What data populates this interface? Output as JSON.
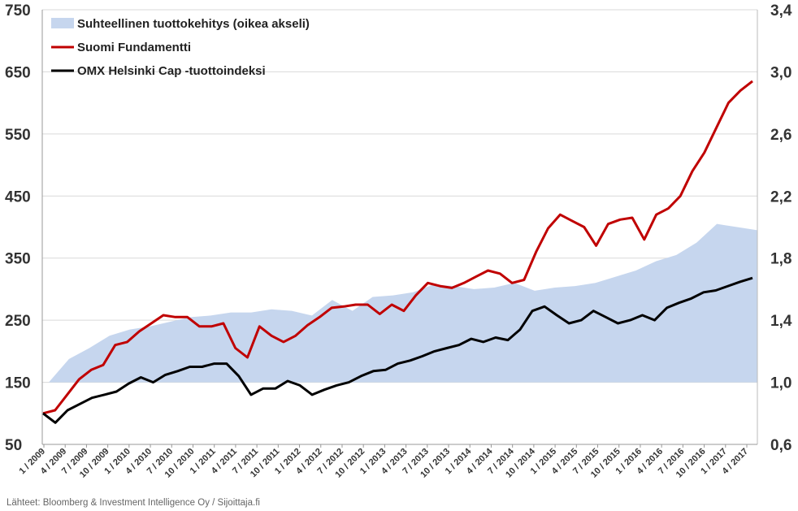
{
  "chart_data": {
    "type": "line",
    "title": "",
    "source": "Lähteet: Bloomberg & Investment Intelligence Oy / Sijoittaja.fi",
    "left_axis": {
      "ylim": [
        50,
        750
      ],
      "ticks": [
        50,
        150,
        250,
        350,
        450,
        550,
        650,
        750
      ]
    },
    "right_axis": {
      "ylim": [
        0.6,
        3.4
      ],
      "ticks": [
        "0,6",
        "1,0",
        "1,4",
        "1,8",
        "2,2",
        "2,6",
        "3,0",
        "3,4"
      ],
      "tick_values": [
        0.6,
        1.0,
        1.4,
        1.8,
        2.2,
        2.6,
        3.0,
        3.4
      ]
    },
    "x_labels": [
      "1 / 2009",
      "4 / 2009",
      "7 / 2009",
      "10 / 2009",
      "1 / 2010",
      "4 / 2010",
      "7 / 2010",
      "10 / 2010",
      "1 / 2011",
      "4 / 2011",
      "7 / 2011",
      "10 / 2011",
      "1 / 2012",
      "4 / 2012",
      "7 / 2012",
      "10 / 2012",
      "1 / 2013",
      "4 / 2013",
      "7 / 2013",
      "10 / 2013",
      "1 / 2014",
      "4 / 2014",
      "7 / 2014",
      "10 / 2014",
      "1 / 2015",
      "4 / 2015",
      "7 / 2015",
      "10 / 2015",
      "1 / 2016",
      "4 / 2016",
      "7 / 2016",
      "10 / 2016",
      "1 / 2017",
      "4 / 2017"
    ],
    "grid": true,
    "legend_position": "top-left",
    "series": [
      {
        "name": "Suhteellinen tuottokehitys (oikea akseli)",
        "kind": "area",
        "axis": "right",
        "color": "#c6d6ee",
        "values": [
          1.0,
          1.15,
          1.22,
          1.3,
          1.34,
          1.36,
          1.39,
          1.42,
          1.43,
          1.45,
          1.45,
          1.47,
          1.46,
          1.43,
          1.53,
          1.46,
          1.55,
          1.56,
          1.58,
          1.63,
          1.62,
          1.6,
          1.61,
          1.64,
          1.59,
          1.61,
          1.62,
          1.64,
          1.68,
          1.72,
          1.78,
          1.82,
          1.9,
          2.02,
          2.0,
          1.98
        ]
      },
      {
        "name": "Suomi Fundamentti",
        "kind": "line",
        "axis": "left",
        "color": "#c00000",
        "values": [
          100,
          105,
          130,
          155,
          170,
          178,
          210,
          215,
          232,
          245,
          258,
          255,
          255,
          240,
          240,
          245,
          205,
          190,
          240,
          225,
          215,
          225,
          242,
          255,
          270,
          272,
          275,
          275,
          260,
          275,
          265,
          290,
          310,
          305,
          302,
          310,
          320,
          330,
          325,
          310,
          315,
          360,
          398,
          420,
          410,
          400,
          370,
          405,
          412,
          415,
          380,
          420,
          430,
          450,
          490,
          520,
          560,
          600,
          620,
          635
        ]
      },
      {
        "name": "OMX Helsinki Cap -tuottoindeksi",
        "kind": "line",
        "axis": "left",
        "color": "#000000",
        "values": [
          100,
          85,
          105,
          115,
          125,
          130,
          135,
          148,
          158,
          150,
          162,
          168,
          175,
          175,
          180,
          180,
          160,
          130,
          140,
          140,
          152,
          145,
          130,
          138,
          145,
          150,
          160,
          168,
          170,
          180,
          185,
          192,
          200,
          205,
          210,
          220,
          215,
          222,
          218,
          235,
          265,
          272,
          258,
          245,
          250,
          265,
          255,
          245,
          250,
          258,
          250,
          270,
          278,
          285,
          295,
          298,
          305,
          312,
          318
        ]
      }
    ]
  }
}
